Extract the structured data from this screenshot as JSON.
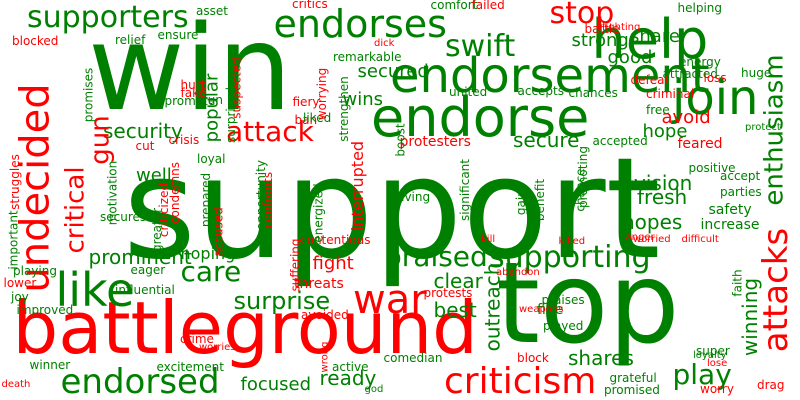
{
  "cloud": {
    "positive_color": "#008000",
    "negative_color": "#ff0000",
    "background_color": "#ffffff",
    "words": [
      {
        "text": "support",
        "tone": "positive"
      },
      {
        "text": "win",
        "tone": "positive"
      },
      {
        "text": "top",
        "tone": "positive"
      },
      {
        "text": "battleground",
        "tone": "negative"
      },
      {
        "text": "endorsement",
        "tone": "positive"
      },
      {
        "text": "endorse",
        "tone": "positive"
      },
      {
        "text": "help",
        "tone": "positive"
      },
      {
        "text": "endorses",
        "tone": "positive"
      },
      {
        "text": "supporters",
        "tone": "positive"
      },
      {
        "text": "undecided",
        "tone": "negative"
      },
      {
        "text": "join",
        "tone": "positive"
      },
      {
        "text": "like",
        "tone": "positive"
      },
      {
        "text": "war",
        "tone": "negative"
      },
      {
        "text": "criticism",
        "tone": "negative"
      },
      {
        "text": "endorsed",
        "tone": "positive"
      },
      {
        "text": "attacks",
        "tone": "negative"
      },
      {
        "text": "supporting",
        "tone": "positive"
      },
      {
        "text": "swift",
        "tone": "positive"
      },
      {
        "text": "stop",
        "tone": "negative"
      },
      {
        "text": "enthusiasm",
        "tone": "positive"
      },
      {
        "text": "attack",
        "tone": "negative"
      },
      {
        "text": "security",
        "tone": "positive"
      },
      {
        "text": "critical",
        "tone": "negative"
      },
      {
        "text": "gun",
        "tone": "negative"
      },
      {
        "text": "praised",
        "tone": "positive"
      },
      {
        "text": "care",
        "tone": "positive"
      },
      {
        "text": "play",
        "tone": "positive"
      },
      {
        "text": "prominent",
        "tone": "positive"
      },
      {
        "text": "surprise",
        "tone": "positive"
      },
      {
        "text": "fresh",
        "tone": "positive"
      },
      {
        "text": "hopes",
        "tone": "positive"
      },
      {
        "text": "vision",
        "tone": "positive"
      },
      {
        "text": "winning",
        "tone": "positive"
      },
      {
        "text": "outreach",
        "tone": "positive"
      },
      {
        "text": "clear",
        "tone": "positive"
      },
      {
        "text": "best",
        "tone": "positive"
      },
      {
        "text": "ready",
        "tone": "positive"
      },
      {
        "text": "focused",
        "tone": "positive"
      },
      {
        "text": "shares",
        "tone": "positive"
      },
      {
        "text": "fight",
        "tone": "negative"
      },
      {
        "text": "secure",
        "tone": "positive"
      },
      {
        "text": "secured",
        "tone": "positive"
      },
      {
        "text": "strong",
        "tone": "positive"
      },
      {
        "text": "good",
        "tone": "positive"
      },
      {
        "text": "share",
        "tone": "positive"
      },
      {
        "text": "hope",
        "tone": "positive"
      },
      {
        "text": "avoid",
        "tone": "negative"
      },
      {
        "text": "wins",
        "tone": "positive"
      },
      {
        "text": "popular",
        "tone": "positive"
      },
      {
        "text": "interrupted",
        "tone": "negative"
      },
      {
        "text": "hoping",
        "tone": "positive"
      },
      {
        "text": "well",
        "tone": "positive"
      },
      {
        "text": "safety",
        "tone": "positive"
      },
      {
        "text": "increase",
        "tone": "positive"
      },
      {
        "text": "protesters",
        "tone": "negative"
      },
      {
        "text": "relief",
        "tone": "positive"
      },
      {
        "text": "ensure",
        "tone": "positive"
      },
      {
        "text": "blocked",
        "tone": "negative"
      },
      {
        "text": "lower",
        "tone": "negative"
      },
      {
        "text": "playing",
        "tone": "positive"
      },
      {
        "text": "joy",
        "tone": "positive"
      },
      {
        "text": "improved",
        "tone": "positive"
      },
      {
        "text": "winner",
        "tone": "positive"
      },
      {
        "text": "death",
        "tone": "negative"
      },
      {
        "text": "influential",
        "tone": "positive"
      },
      {
        "text": "eager",
        "tone": "positive"
      },
      {
        "text": "excitement",
        "tone": "positive"
      },
      {
        "text": "crime",
        "tone": "negative"
      },
      {
        "text": "worries",
        "tone": "negative"
      },
      {
        "text": "threats",
        "tone": "negative"
      },
      {
        "text": "avoided",
        "tone": "negative"
      },
      {
        "text": "protests",
        "tone": "negative"
      },
      {
        "text": "praises",
        "tone": "positive"
      },
      {
        "text": "fine",
        "tone": "positive"
      },
      {
        "text": "played",
        "tone": "positive"
      },
      {
        "text": "block",
        "tone": "negative"
      },
      {
        "text": "grateful",
        "tone": "positive"
      },
      {
        "text": "promised",
        "tone": "positive"
      },
      {
        "text": "super",
        "tone": "positive"
      },
      {
        "text": "loyalty",
        "tone": "positive"
      },
      {
        "text": "lose",
        "tone": "negative"
      },
      {
        "text": "faith",
        "tone": "positive"
      },
      {
        "text": "worry",
        "tone": "negative"
      },
      {
        "text": "drag",
        "tone": "negative"
      },
      {
        "text": "comedian",
        "tone": "positive"
      },
      {
        "text": "active",
        "tone": "positive"
      },
      {
        "text": "god",
        "tone": "positive"
      },
      {
        "text": "wrong",
        "tone": "negative"
      },
      {
        "text": "kill",
        "tone": "negative"
      },
      {
        "text": "killed",
        "tone": "negative"
      },
      {
        "text": "abandon",
        "tone": "negative"
      },
      {
        "text": "anger",
        "tone": "negative"
      },
      {
        "text": "worried",
        "tone": "negative"
      },
      {
        "text": "difficult",
        "tone": "negative"
      },
      {
        "text": "feared",
        "tone": "negative"
      },
      {
        "text": "protect",
        "tone": "positive"
      },
      {
        "text": "parties",
        "tone": "positive"
      },
      {
        "text": "accept",
        "tone": "positive"
      },
      {
        "text": "positive",
        "tone": "positive"
      },
      {
        "text": "accepted",
        "tone": "positive"
      },
      {
        "text": "chances",
        "tone": "positive"
      },
      {
        "text": "criminal",
        "tone": "negative"
      },
      {
        "text": "accepts",
        "tone": "positive"
      },
      {
        "text": "free",
        "tone": "positive"
      },
      {
        "text": "united",
        "tone": "positive"
      },
      {
        "text": "remarkable",
        "tone": "positive"
      },
      {
        "text": "energy",
        "tone": "positive"
      },
      {
        "text": "attracted",
        "tone": "positive"
      },
      {
        "text": "huge",
        "tone": "positive"
      },
      {
        "text": "loss",
        "tone": "negative"
      },
      {
        "text": "defeat",
        "tone": "negative"
      },
      {
        "text": "helping",
        "tone": "positive"
      },
      {
        "text": "battle",
        "tone": "negative"
      },
      {
        "text": "fighting",
        "tone": "negative"
      },
      {
        "text": "comfort",
        "tone": "positive"
      },
      {
        "text": "failed",
        "tone": "negative"
      },
      {
        "text": "critics",
        "tone": "negative"
      },
      {
        "text": "dick",
        "tone": "negative"
      },
      {
        "text": "fiery",
        "tone": "negative"
      },
      {
        "text": "ban",
        "tone": "negative"
      },
      {
        "text": "hurt",
        "tone": "negative"
      },
      {
        "text": "fake",
        "tone": "negative"
      },
      {
        "text": "promote",
        "tone": "positive"
      },
      {
        "text": "fun",
        "tone": "positive"
      },
      {
        "text": "cut",
        "tone": "negative"
      },
      {
        "text": "crisis",
        "tone": "negative"
      },
      {
        "text": "loyal",
        "tone": "positive"
      },
      {
        "text": "accused",
        "tone": "negative"
      },
      {
        "text": "condemns",
        "tone": "negative"
      },
      {
        "text": "prepared",
        "tone": "positive"
      },
      {
        "text": "opportunity",
        "tone": "positive"
      },
      {
        "text": "suffering",
        "tone": "negative"
      },
      {
        "text": "contentious",
        "tone": "negative"
      },
      {
        "text": "giving",
        "tone": "positive"
      },
      {
        "text": "energized",
        "tone": "positive"
      },
      {
        "text": "liked",
        "tone": "positive"
      },
      {
        "text": "strengthen",
        "tone": "positive"
      },
      {
        "text": "worrying",
        "tone": "negative"
      },
      {
        "text": "suspected",
        "tone": "negative"
      },
      {
        "text": "surprised",
        "tone": "positive"
      },
      {
        "text": "struggles",
        "tone": "negative"
      },
      {
        "text": "important",
        "tone": "positive"
      },
      {
        "text": "motivation",
        "tone": "positive"
      },
      {
        "text": "secures",
        "tone": "positive"
      },
      {
        "text": "greater",
        "tone": "positive"
      },
      {
        "text": "criticized",
        "tone": "negative"
      },
      {
        "text": "promises",
        "tone": "positive"
      },
      {
        "text": "significant",
        "tone": "positive"
      },
      {
        "text": "confronts",
        "tone": "negative"
      },
      {
        "text": "boost",
        "tone": "positive"
      },
      {
        "text": "gains",
        "tone": "positive"
      },
      {
        "text": "benefit",
        "tone": "positive"
      },
      {
        "text": "promoting",
        "tone": "positive"
      },
      {
        "text": "chance",
        "tone": "positive"
      },
      {
        "text": "asset",
        "tone": "positive"
      },
      {
        "text": "weapons",
        "tone": "negative"
      }
    ]
  }
}
